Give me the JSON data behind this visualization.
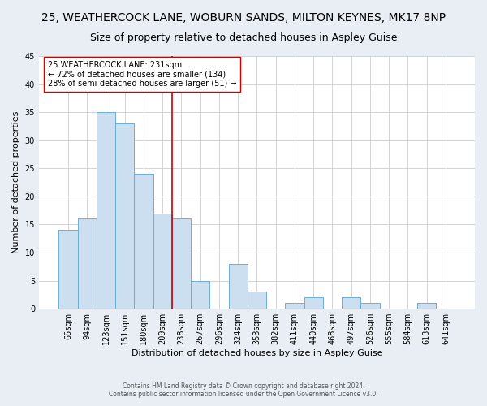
{
  "title": "25, WEATHERCOCK LANE, WOBURN SANDS, MILTON KEYNES, MK17 8NP",
  "subtitle": "Size of property relative to detached houses in Aspley Guise",
  "xlabel": "Distribution of detached houses by size in Aspley Guise",
  "ylabel": "Number of detached properties",
  "bin_labels": [
    "65sqm",
    "94sqm",
    "123sqm",
    "151sqm",
    "180sqm",
    "209sqm",
    "238sqm",
    "267sqm",
    "296sqm",
    "324sqm",
    "353sqm",
    "382sqm",
    "411sqm",
    "440sqm",
    "468sqm",
    "497sqm",
    "526sqm",
    "555sqm",
    "584sqm",
    "613sqm",
    "641sqm"
  ],
  "bar_heights": [
    14,
    16,
    35,
    33,
    24,
    17,
    16,
    5,
    0,
    8,
    3,
    0,
    1,
    2,
    0,
    2,
    1,
    0,
    0,
    1,
    0
  ],
  "bar_color": "#ccdff0",
  "bar_edge_color": "#6aaed6",
  "vline_x_index": 6,
  "vline_color": "#cc0000",
  "annotation_text": "25 WEATHERCOCK LANE: 231sqm\n← 72% of detached houses are smaller (134)\n28% of semi-detached houses are larger (51) →",
  "annotation_box_color": "white",
  "annotation_box_edge": "#cc0000",
  "ylim": [
    0,
    45
  ],
  "yticks": [
    0,
    5,
    10,
    15,
    20,
    25,
    30,
    35,
    40,
    45
  ],
  "footnote1": "Contains HM Land Registry data © Crown copyright and database right 2024.",
  "footnote2": "Contains public sector information licensed under the Open Government Licence v3.0.",
  "background_color": "#e8eef4",
  "plot_background_color": "white",
  "title_fontsize": 10,
  "subtitle_fontsize": 9,
  "axis_label_fontsize": 8,
  "tick_fontsize": 7,
  "annotation_fontsize": 7,
  "grid_color": "#cccccc"
}
